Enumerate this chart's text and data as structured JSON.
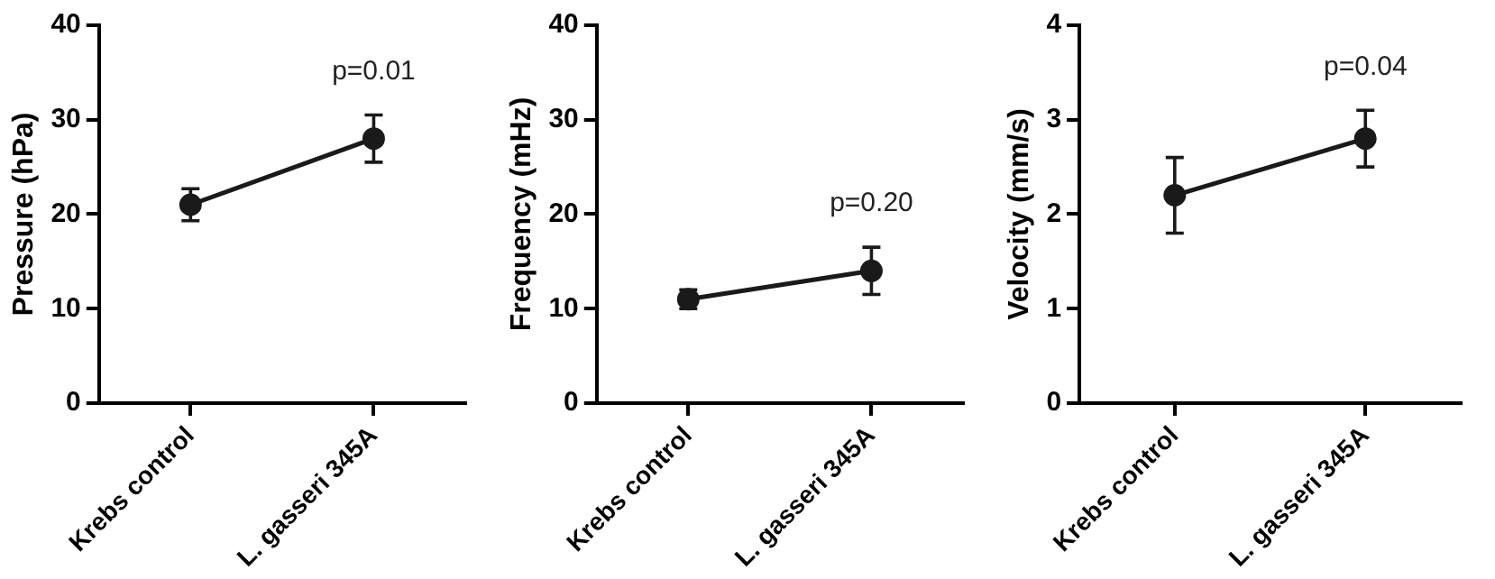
{
  "chart_data": [
    {
      "type": "line",
      "ylabel": "Pressure (hPa)",
      "categories": [
        "Krebs control",
        "L. gasseri 345A"
      ],
      "series": [
        {
          "color": "#1a1a1a",
          "values": [
            21,
            28
          ],
          "errors": [
            [
              19.3,
              22.7
            ],
            [
              25.5,
              30.5
            ]
          ]
        }
      ],
      "ylim": [
        0,
        40
      ],
      "yticks": [
        0,
        10,
        20,
        30,
        40
      ],
      "grid": false,
      "legend": false,
      "marker": "circle",
      "line_style": "solid",
      "annotations": [
        "p=0.01"
      ]
    },
    {
      "type": "line",
      "ylabel": "Frequency (mHz)",
      "categories": [
        "Krebs control",
        "L. gasseri 345A"
      ],
      "series": [
        {
          "color": "#1a1a1a",
          "values": [
            11,
            14
          ],
          "errors": [
            [
              10,
              12
            ],
            [
              11.5,
              16.5
            ]
          ]
        }
      ],
      "ylim": [
        0,
        40
      ],
      "yticks": [
        0,
        10,
        20,
        30,
        40
      ],
      "grid": false,
      "legend": false,
      "marker": "circle",
      "line_style": "solid",
      "annotations": [
        "p=0.20"
      ]
    },
    {
      "type": "line",
      "ylabel": "Velocity (mm/s)",
      "categories": [
        "Krebs control",
        "L. gasseri 345A"
      ],
      "series": [
        {
          "color": "#1a1a1a",
          "values": [
            2.2,
            2.8
          ],
          "errors": [
            [
              1.8,
              2.6
            ],
            [
              2.5,
              3.1
            ]
          ]
        }
      ],
      "ylim": [
        0,
        4
      ],
      "yticks": [
        0,
        1,
        2,
        3,
        4
      ],
      "grid": false,
      "legend": false,
      "marker": "circle",
      "line_style": "solid",
      "annotations": [
        "p=0.04"
      ]
    }
  ]
}
